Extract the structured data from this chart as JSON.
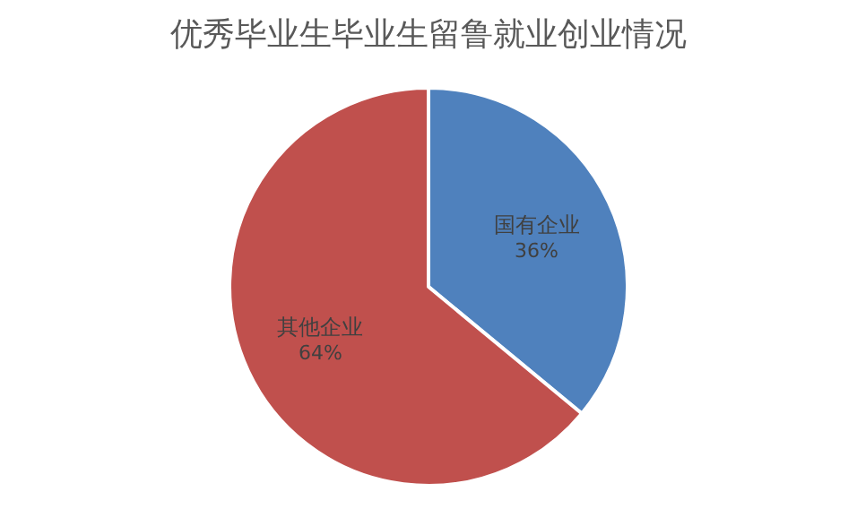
{
  "chart_data": {
    "type": "pie",
    "title": "优秀毕业生毕业生留鲁就业创业情况",
    "categories": [
      "国有企业",
      "其他企业"
    ],
    "values": [
      36,
      64
    ],
    "value_labels": [
      "36%",
      "64%"
    ],
    "colors": [
      "#4f81bd",
      "#c0504d"
    ],
    "legend": false
  }
}
